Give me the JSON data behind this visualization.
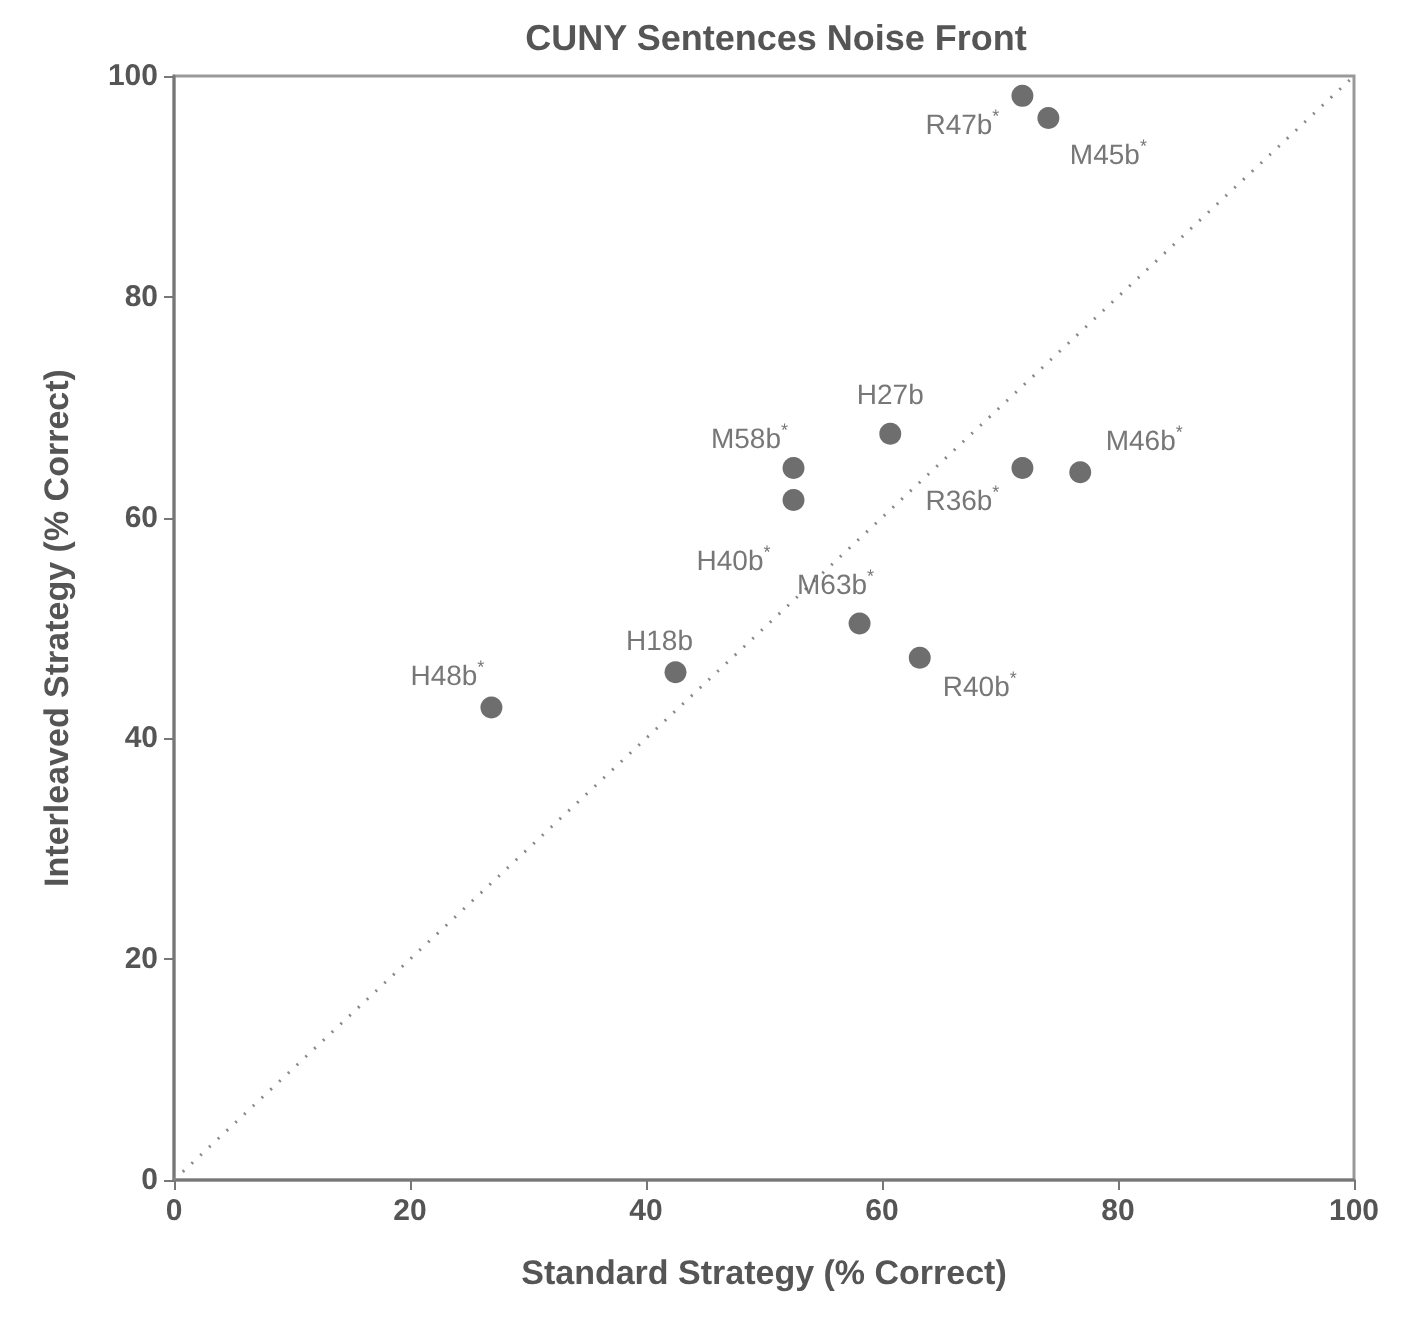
{
  "chart_data": {
    "type": "scatter",
    "title": "CUNY Sentences Noise Front",
    "xlabel": "Standard Strategy (% Correct)",
    "ylabel": "Interleaved Strategy (% Correct)",
    "xlim": [
      0,
      100
    ],
    "ylim": [
      0,
      100
    ],
    "xticks": [
      0,
      20,
      40,
      60,
      80,
      100
    ],
    "yticks": [
      0,
      20,
      40,
      60,
      80,
      100
    ],
    "marker": "circle",
    "series": [
      {
        "color": "#4a4a4a",
        "x": [
          26.9,
          42.5,
          58.1,
          63.2,
          52.5,
          52.5,
          60.7,
          71.9,
          76.8,
          71.9,
          74.1
        ],
        "values": [
          42.8,
          46.0,
          50.4,
          47.3,
          61.6,
          64.5,
          67.6,
          64.5,
          64.1,
          98.2,
          96.2
        ]
      },
      {
        "type": "line",
        "color": "#888888",
        "line_style": "dotted",
        "marker": "none",
        "x": [
          0,
          100
        ],
        "values": [
          0,
          100
        ]
      }
    ],
    "annotations": [
      {
        "text": "H48b$^{*}$",
        "x": 26.9,
        "y": 42.8
      },
      {
        "text": "H18b",
        "x": 42.5,
        "y": 46.0
      },
      {
        "text": "M63b$^{*}$",
        "x": 58.1,
        "y": 50.4
      },
      {
        "text": "R40b$^{*}$",
        "x": 63.2,
        "y": 47.3
      },
      {
        "text": "H40b$^{*}$",
        "x": 52.5,
        "y": 61.6
      },
      {
        "text": "M58b$^{*}$",
        "x": 52.5,
        "y": 64.5
      },
      {
        "text": "H27b",
        "x": 60.7,
        "y": 67.6
      },
      {
        "text": "R36b$^{*}$",
        "x": 71.9,
        "y": 64.5
      },
      {
        "text": "M46b$^{*}$",
        "x": 76.8,
        "y": 64.1
      },
      {
        "text": "R47b$^{*}$",
        "x": 71.9,
        "y": 98.2
      },
      {
        "text": "M45b$^{*}$",
        "x": 74.1,
        "y": 96.2
      }
    ]
  }
}
